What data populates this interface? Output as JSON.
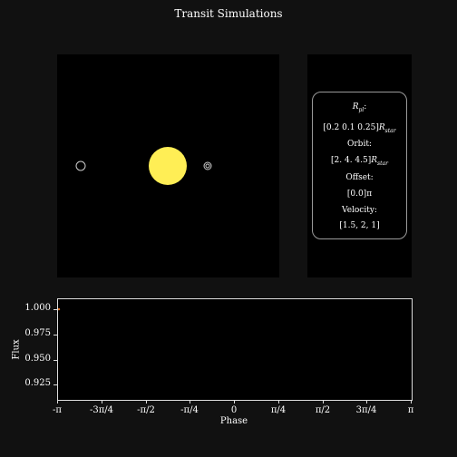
{
  "title": "Transit Simulations",
  "info": {
    "rpl_label": "R",
    "rpl_sub": "pl",
    "rpl_suffix": ":",
    "rpl_values": "[0.2  0.1  0.25]",
    "rstar_label": "R",
    "rstar_sub": "star",
    "orbit_label": "Orbit:",
    "orbit_values": "[2.  4.  4.5]",
    "offset_label": "Offset:",
    "offset_values": "[0.0]π",
    "velocity_label": "Velocity:",
    "velocity_values": "[1.5, 2, 1]"
  },
  "colors": {
    "star": "#ffee55",
    "planet_outline": "#cccccc",
    "background": "#111111",
    "panel": "#000000",
    "flux_marker": "#e07020"
  },
  "flux_plot": {
    "xlabel": "Phase",
    "ylabel": "Flux",
    "yticks": [
      "1.000",
      "0.975",
      "0.950",
      "0.925"
    ],
    "ytick_values": [
      1.0,
      0.975,
      0.95,
      0.925
    ],
    "ylim": [
      0.911,
      1.01
    ],
    "xticks": [
      "-π",
      "-3π/4",
      "-π/2",
      "-π/4",
      "0",
      "π/4",
      "π/2",
      "3π/4",
      "π"
    ]
  },
  "chart_data": {
    "type": "line",
    "xlabel": "Phase",
    "ylabel": "Flux",
    "x": [
      -3.1416
    ],
    "series": [
      {
        "values": [
          1.0
        ]
      }
    ],
    "ylim": [
      0.911,
      1.01
    ],
    "xlim": [
      -3.1416,
      3.1416
    ]
  }
}
